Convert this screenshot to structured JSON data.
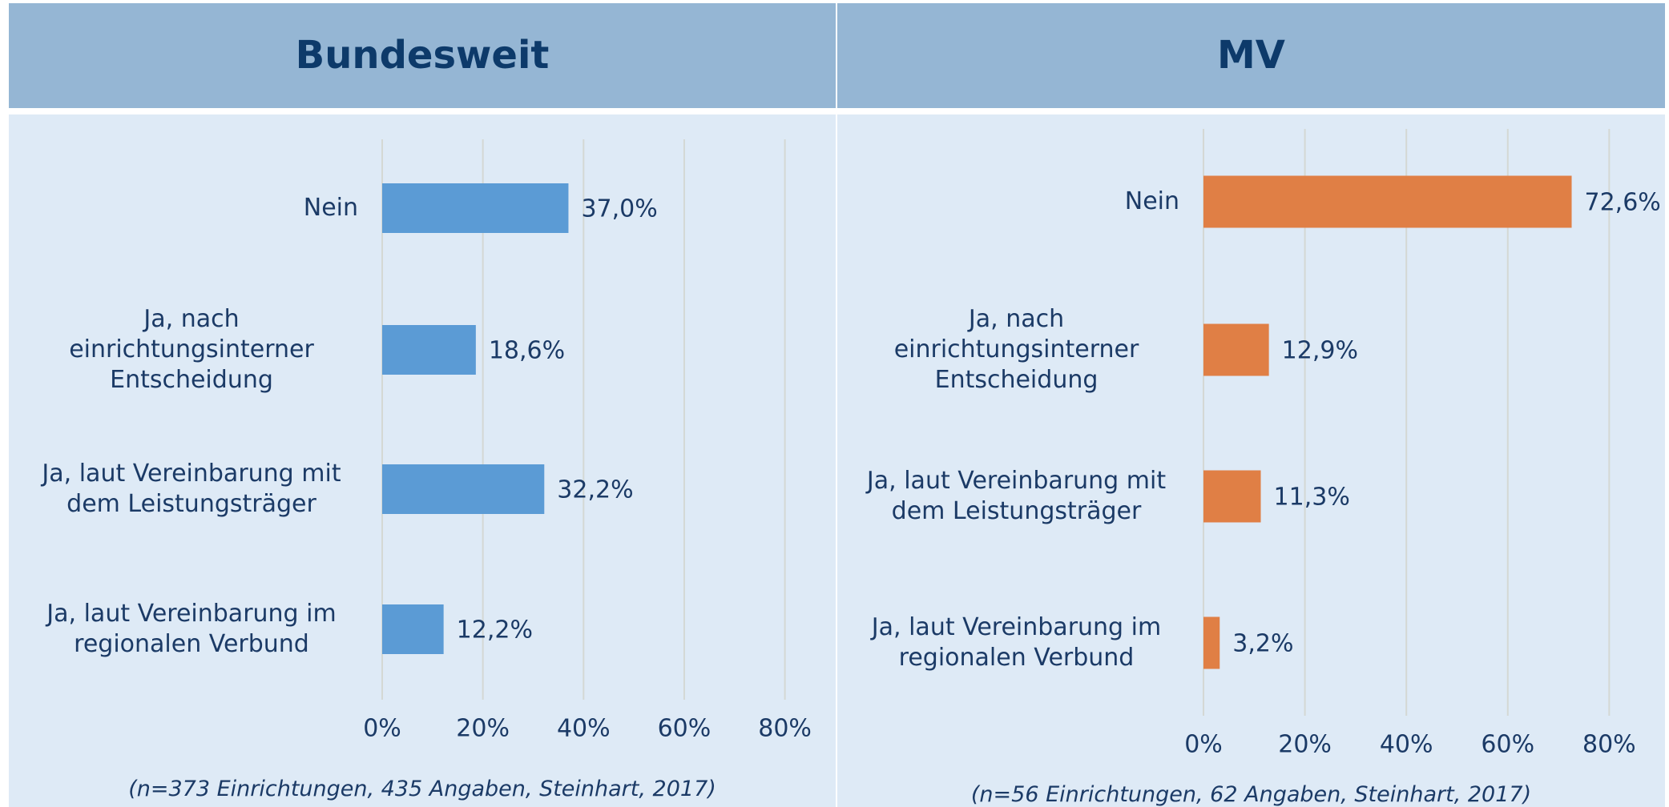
{
  "chart_data": [
    {
      "type": "bar",
      "orientation": "horizontal",
      "title": "Bundesweit",
      "categories": [
        "Nein",
        "Ja, nach einrichtungsinterner Entscheidung",
        "Ja, laut Vereinbarung mit dem Leistungsträger",
        "Ja, laut Vereinbarung im regionalen Verbund"
      ],
      "values": [
        37.0,
        18.6,
        32.2,
        12.2
      ],
      "value_labels": [
        "37,0%",
        "18,6%",
        "32,2%",
        "12,2%"
      ],
      "color": "#5b9bd5",
      "xlim": [
        0,
        85
      ],
      "xticks": [
        {
          "value": 0,
          "label": "0%"
        },
        {
          "value": 20,
          "label": "20%"
        },
        {
          "value": 40,
          "label": "40%"
        },
        {
          "value": 60,
          "label": "60%"
        },
        {
          "value": 80,
          "label": "80%"
        }
      ],
      "grid": true,
      "footnote": "(n=373 Einrichtungen, 435 Angaben, Steinhart, 2017)"
    },
    {
      "type": "bar",
      "orientation": "horizontal",
      "title": "MV",
      "categories": [
        "Nein",
        "Ja, nach einrichtungsinterner Entscheidung",
        "Ja, laut Vereinbarung mit dem Leistungsträger",
        "Ja, laut Vereinbarung im regionalen Verbund"
      ],
      "values": [
        72.6,
        12.9,
        11.3,
        3.2
      ],
      "value_labels": [
        "72,6%",
        "12,9%",
        "11,3%",
        "3,2%"
      ],
      "color": "#e07f45",
      "xlim": [
        0,
        85
      ],
      "xticks": [
        {
          "value": 0,
          "label": "0%"
        },
        {
          "value": 20,
          "label": "20%"
        },
        {
          "value": 40,
          "label": "40%"
        },
        {
          "value": 60,
          "label": "60%"
        },
        {
          "value": 80,
          "label": "80%"
        }
      ],
      "grid": true,
      "footnote": "(n=56 Einrichtungen, 62 Angaben, Steinhart, 2017)"
    }
  ]
}
